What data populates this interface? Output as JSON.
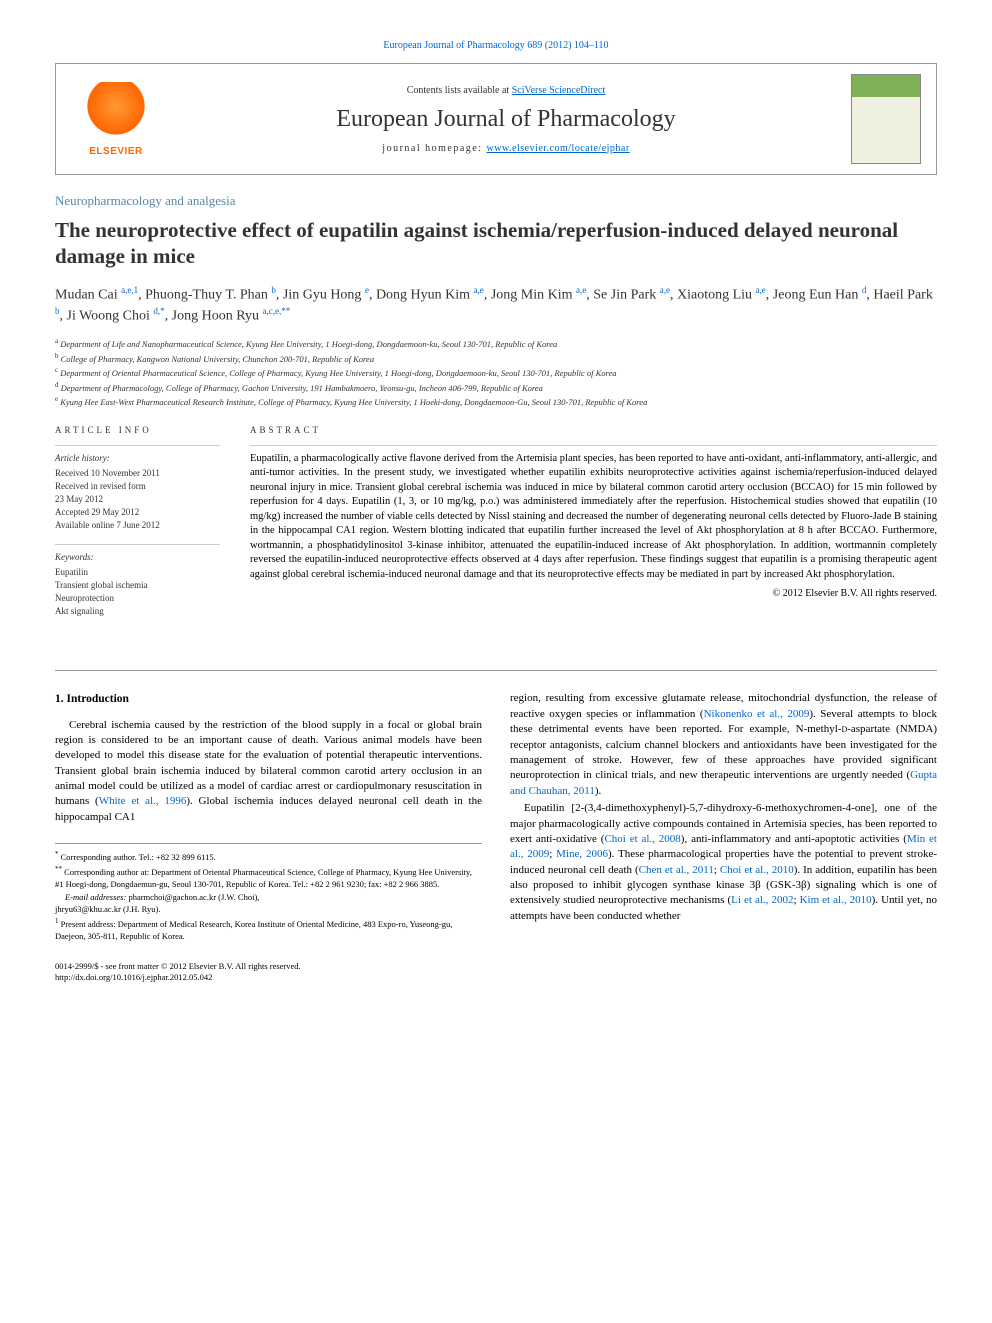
{
  "top_link": "European Journal of Pharmacology 689 (2012) 104–110",
  "header": {
    "elsevier_label": "ELSEVIER",
    "contents_prefix": "Contents lists available at ",
    "contents_link": "SciVerse ScienceDirect",
    "journal_name": "European Journal of Pharmacology",
    "homepage_prefix": "journal homepage: ",
    "homepage_link": "www.elsevier.com/locate/ejphar"
  },
  "section_category": "Neuropharmacology and analgesia",
  "title": "The neuroprotective effect of eupatilin against ischemia/reperfusion-induced delayed neuronal damage in mice",
  "authors_html": "Mudan Cai <sup>a,e,1</sup>, Phuong-Thuy T. Phan <sup>b</sup>, Jin Gyu Hong <sup>e</sup>, Dong Hyun Kim <sup>a,e</sup>, Jong Min Kim <sup>a,e</sup>, Se Jin Park <sup>a,e</sup>, Xiaotong Liu <sup>a,e</sup>, Jeong Eun Han <sup>d</sup>, Haeil Park <sup>b</sup>, Ji Woong Choi <sup>d,*</sup>, Jong Hoon Ryu <sup>a,c,e,**</sup>",
  "affiliations": [
    {
      "sup": "a",
      "text": "Department of Life and Nanopharmaceutical Science, Kyung Hee University, 1 Hoegi-dong, Dongdaemoon-ku, Seoul 130-701, Republic of Korea"
    },
    {
      "sup": "b",
      "text": "College of Pharmacy, Kangwon National University, Chunchon 200-701, Republic of Korea"
    },
    {
      "sup": "c",
      "text": "Department of Oriental Pharmaceutical Science, College of Pharmacy, Kyung Hee University, 1 Hoegi-dong, Dongdaemoon-ku, Seoul 130-701, Republic of Korea"
    },
    {
      "sup": "d",
      "text": "Department of Pharmacology, College of Pharmacy, Gachon University, 191 Hambakmoero, Yeonsu-gu, Incheon 406-799, Republic of Korea"
    },
    {
      "sup": "e",
      "text": "Kyung Hee East-West Pharmaceutical Research Institute, College of Pharmacy, Kyung Hee University, 1 Hoeki-dong, Dongdaemoon-Gu, Seoul 130-701, Republic of Korea"
    }
  ],
  "article_info": {
    "heading": "article info",
    "history_label": "Article history:",
    "history_lines": [
      "Received 10 November 2011",
      "Received in revised form",
      "23 May 2012",
      "Accepted 29 May 2012",
      "Available online 7 June 2012"
    ],
    "keywords_label": "Keywords:",
    "keywords": [
      "Eupatilin",
      "Transient global ischemia",
      "Neuroprotection",
      "Akt signaling"
    ]
  },
  "abstract": {
    "heading": "abstract",
    "text": "Eupatilin, a pharmacologically active flavone derived from the Artemisia plant species, has been reported to have anti-oxidant, anti-inflammatory, anti-allergic, and anti-tumor activities. In the present study, we investigated whether eupatilin exhibits neuroprotective activities against ischemia/reperfusion-induced delayed neuronal injury in mice. Transient global cerebral ischemia was induced in mice by bilateral common carotid artery occlusion (BCCAO) for 15 min followed by reperfusion for 4 days. Eupatilin (1, 3, or 10 mg/kg, p.o.) was administered immediately after the reperfusion. Histochemical studies showed that eupatilin (10 mg/kg) increased the number of viable cells detected by Nissl staining and decreased the number of degenerating neuronal cells detected by Fluoro-Jade B staining in the hippocampal CA1 region. Western blotting indicated that eupatilin further increased the level of Akt phosphorylation at 8 h after BCCAO. Furthermore, wortmannin, a phosphatidylinositol 3-kinase inhibitor, attenuated the eupatilin-induced increase of Akt phosphorylation. In addition, wortmannin completely reversed the eupatilin-induced neuroprotective effects observed at 4 days after reperfusion. These findings suggest that eupatilin is a promising therapeutic agent against global cerebral ischemia-induced neuronal damage and that its neuroprotective effects may be mediated in part by increased Akt phosphorylation.",
    "copyright": "© 2012 Elsevier B.V. All rights reserved."
  },
  "intro": {
    "heading": "1. Introduction",
    "col1_para1": "Cerebral ischemia caused by the restriction of the blood supply in a focal or global brain region is considered to be an important cause of death. Various animal models have been developed to model this disease state for the evaluation of potential therapeutic interventions. Transient global brain ischemia induced by bilateral common carotid artery occlusion in an animal model could be utilized as a model of cardiac arrest or cardiopulmonary resuscitation in humans (<a href=\"#\">White et al., 1996</a>). Global ischemia induces delayed neuronal cell death in the hippocampal CA1",
    "col2_para1": "region, resulting from excessive glutamate release, mitochondrial dysfunction, the release of reactive oxygen species or inflammation (<a href=\"#\">Nikonenko et al., 2009</a>). Several attempts to block these detrimental events have been reported. For example, N-methyl-<span class=\"smallcaps\">d</span>-aspartate (NMDA) receptor antagonists, calcium channel blockers and antioxidants have been investigated for the management of stroke. However, few of these approaches have provided significant neuroprotection in clinical trials, and new therapeutic interventions are urgently needed (<a href=\"#\">Gupta and Chauhan, 2011</a>).",
    "col2_para2": "Eupatilin [2-(3,4-dimethoxyphenyl)-5,7-dihydroxy-6-methoxychromen-4-one], one of the major pharmacologically active compounds contained in Artemisia species, has been reported to exert anti-oxidative (<a href=\"#\">Choi et al., 2008</a>), anti-inflammatory and anti-apoptotic activities (<a href=\"#\">Min et al., 2009</a>; <a href=\"#\">Mine, 2006</a>). These pharmacological properties have the potential to prevent stroke-induced neuronal cell death (<a href=\"#\">Chen et al., 2011</a>; <a href=\"#\">Choi et al., 2010</a>). In addition, eupatilin has been also proposed to inhibit glycogen synthase kinase 3β (GSK-3β) signaling which is one of extensively studied neuroprotective mechanisms (<a href=\"#\">Li et al., 2002</a>; <a href=\"#\">Kim et al., 2010</a>). Until yet, no attempts have been conducted whether"
  },
  "footnotes": {
    "line1_sup": "*",
    "line1": "Corresponding author. Tel.: +82 32 899 6115.",
    "line2_sup": "**",
    "line2": "Corresponding author at: Department of Oriental Pharmaceutical Science, College of Pharmacy, Kyung Hee University, #1 Hoegi-dong, Dongdaemun-gu, Seoul 130-701, Republic of Korea. Tel.: +82 2 961 9230; fax: +82 2 966 3885.",
    "email_label": "E-mail addresses:",
    "email1": "pharmchoi@gachon.ac.kr (J.W. Choi),",
    "email2": "jhryu63@khu.ac.kr (J.H. Ryu).",
    "line3_sup": "1",
    "line3": "Present address: Department of Medical Research, Korea Institute of Oriental Medicine, 483 Expo-ro, Yuseong-gu, Daejeon, 305-811, Republic of Korea."
  },
  "footer": {
    "line1": "0014-2999/$ - see front matter © 2012 Elsevier B.V. All rights reserved.",
    "line2": "http://dx.doi.org/10.1016/j.ejphar.2012.05.042"
  },
  "colors": {
    "link": "#0066cc",
    "section": "#5588aa",
    "text": "#333333",
    "border": "#999999",
    "elsevier": "#ff6600",
    "cover_green": "#7fb257"
  }
}
